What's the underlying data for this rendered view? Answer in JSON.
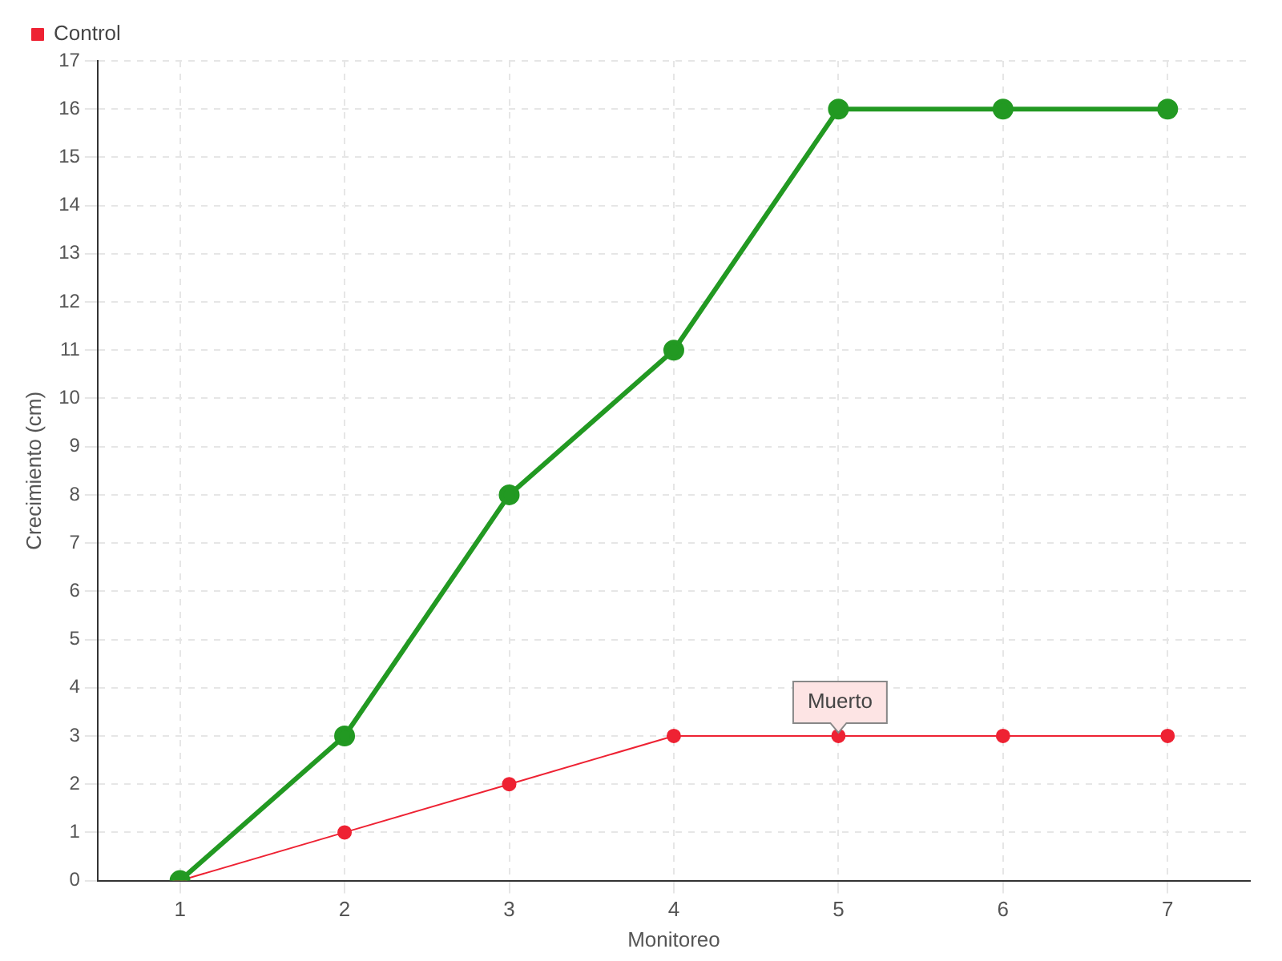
{
  "chart_data": {
    "type": "line",
    "xlabel": "Monitoreo",
    "ylabel": "Crecimiento (cm)",
    "categories": [
      "1",
      "2",
      "3",
      "4",
      "5",
      "6",
      "7"
    ],
    "series": [
      {
        "color": "#229922",
        "values": [
          0,
          3,
          8,
          11,
          16,
          16,
          16
        ]
      },
      {
        "name": "Control",
        "color": "#ee2233",
        "values": [
          0,
          1,
          2,
          3,
          3,
          3,
          3
        ]
      }
    ],
    "ylim": [
      0,
      17
    ],
    "yticks": [
      0,
      1,
      2,
      3,
      4,
      5,
      6,
      7,
      8,
      9,
      10,
      11,
      12,
      13,
      14,
      15,
      16,
      17
    ],
    "grid": true,
    "legend": "top left",
    "marker": "circle",
    "line_style": "solid",
    "annotations": [
      {
        "text": "Muerto",
        "x": "5",
        "y": 3
      }
    ]
  }
}
